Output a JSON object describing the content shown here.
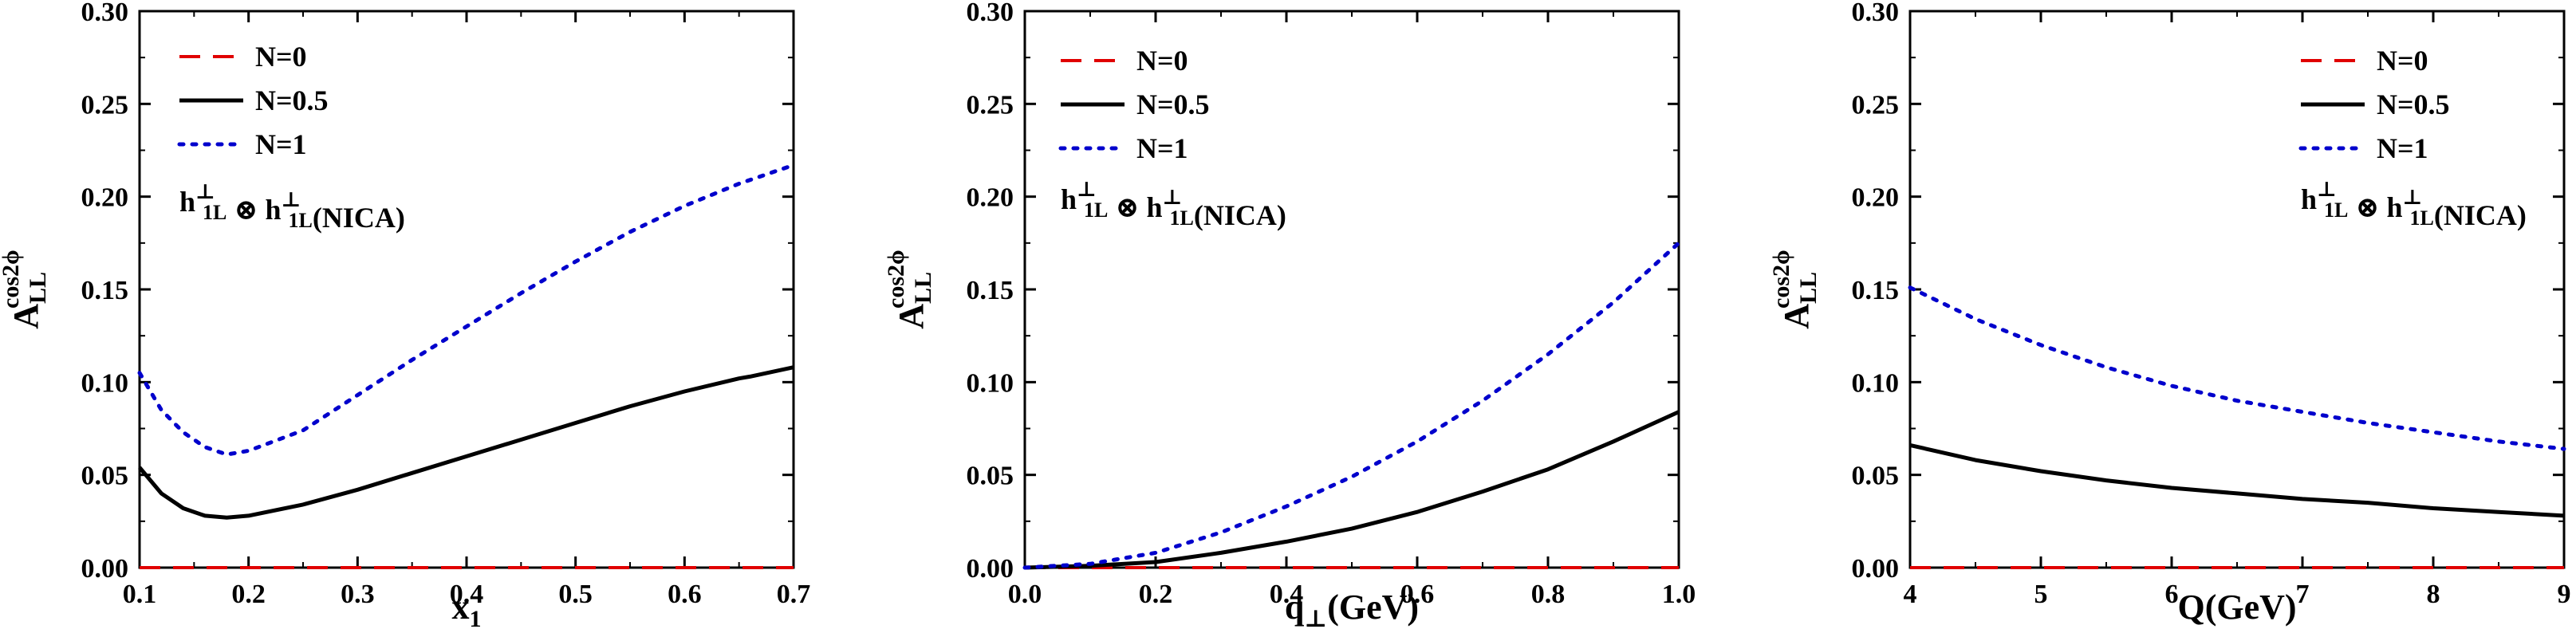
{
  "figure": {
    "annotation": {
      "main": "h",
      "sup": "⊥",
      "sub": "1L",
      "op": " ⊗ ",
      "suffix": "(NICA)"
    },
    "legend": [
      "N=0",
      "N=0.5",
      "N=1"
    ],
    "colors": {
      "N0": "#e00000",
      "N05": "#000000",
      "N1": "#0000cc"
    }
  },
  "chart_data": [
    {
      "type": "line",
      "xlabel": "x",
      "xlabel_sub": "1",
      "ylabel": "A",
      "ylabel_sup": "cos2ϕ",
      "ylabel_sub": "LL",
      "xlim": [
        0.1,
        0.7
      ],
      "ylim": [
        0.0,
        0.3
      ],
      "xticks": [
        "0.1",
        "0.2",
        "0.3",
        "0.4",
        "0.5",
        "0.6",
        "0.7"
      ],
      "yticks": [
        "0.00",
        "0.05",
        "0.10",
        "0.15",
        "0.20",
        "0.25",
        "0.30"
      ],
      "legend_position": "top-left",
      "grid": false,
      "series": [
        {
          "name": "N=0",
          "x": [
            0.1,
            0.7
          ],
          "y": [
            0.0,
            0.0
          ]
        },
        {
          "name": "N=0.5",
          "x": [
            0.1,
            0.12,
            0.14,
            0.16,
            0.18,
            0.2,
            0.25,
            0.3,
            0.35,
            0.4,
            0.45,
            0.5,
            0.55,
            0.6,
            0.65,
            0.66,
            0.7
          ],
          "y": [
            0.054,
            0.04,
            0.032,
            0.028,
            0.027,
            0.028,
            0.034,
            0.042,
            0.051,
            0.06,
            0.069,
            0.078,
            0.087,
            0.095,
            0.102,
            0.103,
            0.108
          ]
        },
        {
          "name": "N=1",
          "x": [
            0.1,
            0.12,
            0.14,
            0.16,
            0.18,
            0.2,
            0.25,
            0.3,
            0.35,
            0.4,
            0.45,
            0.5,
            0.55,
            0.6,
            0.65,
            0.7
          ],
          "y": [
            0.105,
            0.085,
            0.073,
            0.065,
            0.061,
            0.063,
            0.074,
            0.093,
            0.112,
            0.13,
            0.148,
            0.165,
            0.181,
            0.195,
            0.207,
            0.217
          ]
        }
      ]
    },
    {
      "type": "line",
      "xlabel": "q",
      "xlabel_sub": "⊥",
      "xlabel_suffix": "(GeV)",
      "ylabel": "A",
      "ylabel_sup": "cos2ϕ",
      "ylabel_sub": "LL",
      "xlim": [
        0.0,
        1.0
      ],
      "ylim": [
        0.0,
        0.3
      ],
      "xticks": [
        "0.0",
        "0.2",
        "0.4",
        "0.6",
        "0.8",
        "1.0"
      ],
      "yticks": [
        "0.00",
        "0.05",
        "0.10",
        "0.15",
        "0.20",
        "0.25",
        "0.30"
      ],
      "legend_position": "top-left",
      "grid": false,
      "series": [
        {
          "name": "N=0",
          "x": [
            0.0,
            1.0
          ],
          "y": [
            0.0,
            0.0
          ]
        },
        {
          "name": "N=0.5",
          "x": [
            0.0,
            0.1,
            0.2,
            0.3,
            0.4,
            0.5,
            0.6,
            0.7,
            0.8,
            0.9,
            1.0
          ],
          "y": [
            0.0,
            0.001,
            0.003,
            0.008,
            0.014,
            0.021,
            0.03,
            0.041,
            0.053,
            0.068,
            0.084
          ]
        },
        {
          "name": "N=1",
          "x": [
            0.0,
            0.1,
            0.2,
            0.3,
            0.4,
            0.5,
            0.6,
            0.7,
            0.8,
            0.9,
            1.0
          ],
          "y": [
            0.0,
            0.002,
            0.008,
            0.019,
            0.033,
            0.049,
            0.068,
            0.09,
            0.115,
            0.143,
            0.175
          ]
        }
      ]
    },
    {
      "type": "line",
      "xlabel": "Q(GeV)",
      "ylabel": "A",
      "ylabel_sup": "cos2ϕ",
      "ylabel_sub": "LL",
      "xlim": [
        4,
        9
      ],
      "ylim": [
        0.0,
        0.3
      ],
      "xticks": [
        "4",
        "5",
        "6",
        "7",
        "8",
        "9"
      ],
      "yticks": [
        "0.00",
        "0.05",
        "0.10",
        "0.15",
        "0.20",
        "0.25",
        "0.30"
      ],
      "legend_position": "top-right",
      "grid": false,
      "series": [
        {
          "name": "N=0",
          "x": [
            4,
            9
          ],
          "y": [
            0.0,
            0.0
          ]
        },
        {
          "name": "N=0.5",
          "x": [
            4,
            4.5,
            5,
            5.5,
            6,
            6.5,
            7,
            7.5,
            8,
            8.5,
            9
          ],
          "y": [
            0.066,
            0.058,
            0.052,
            0.047,
            0.043,
            0.04,
            0.037,
            0.035,
            0.032,
            0.03,
            0.028
          ]
        },
        {
          "name": "N=1",
          "x": [
            4,
            4.5,
            5,
            5.5,
            6,
            6.5,
            7,
            7.5,
            8,
            8.5,
            9
          ],
          "y": [
            0.151,
            0.134,
            0.12,
            0.108,
            0.098,
            0.09,
            0.084,
            0.078,
            0.073,
            0.068,
            0.064
          ]
        }
      ]
    }
  ]
}
